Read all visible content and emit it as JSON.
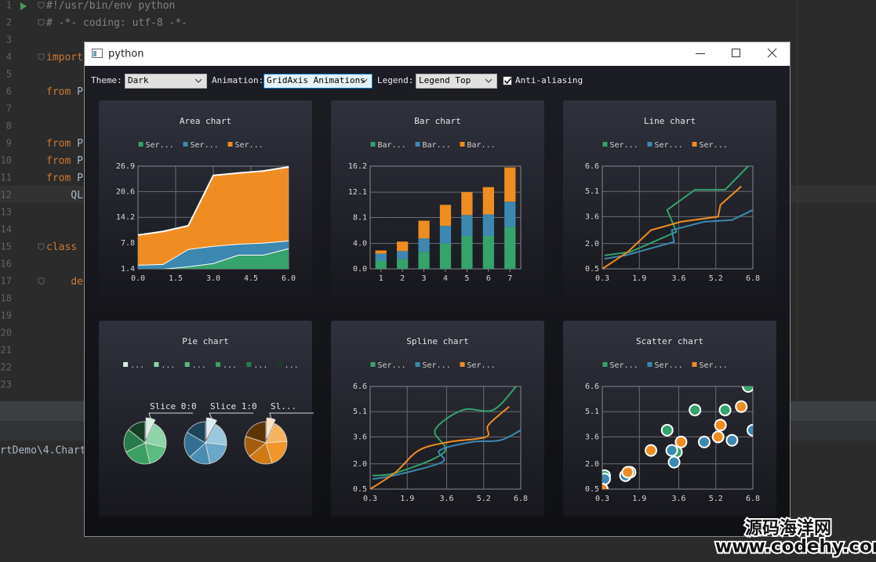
{
  "editor": {
    "line_numbers": [
      1,
      2,
      3,
      4,
      5,
      6,
      7,
      8,
      9,
      10,
      11,
      12,
      13,
      14,
      15,
      16,
      17,
      18,
      19,
      20,
      21,
      22,
      23
    ],
    "code": [
      "#!/usr/bin/env python",
      "# -*- coding: utf-8 -*-",
      null,
      "import",
      null,
      "from P",
      null,
      null,
      "from P",
      "from P",
      "from P",
      "    QL",
      null,
      null,
      "class",
      null,
      "    de",
      null,
      null,
      null,
      null,
      null,
      null
    ],
    "status_path": "rtDemo\\4.Chart"
  },
  "window": {
    "title": "python"
  },
  "toolbar": {
    "theme_label": "Theme:",
    "theme": "Dark",
    "animation_label": "Animation:",
    "animation": "GridAxis Animations",
    "legend_label": "Legend:",
    "legend": "Legend Top",
    "antialiasing_label": "Anti-aliasing",
    "antialiasing": true
  },
  "charts": [
    {
      "type": "area",
      "title": "Area chart",
      "x": [
        0,
        1,
        2,
        3,
        4,
        5,
        6
      ],
      "xlim": [
        0,
        6
      ],
      "xticks": [
        {
          "value": 0,
          "label": "0.0"
        },
        1.5,
        {
          "value": 3,
          "label": "3.0"
        },
        4.5,
        {
          "value": 6,
          "label": "6.0"
        }
      ],
      "ylim": [
        1.4,
        26.9
      ],
      "yticks": [
        1.4,
        7.8,
        14.2,
        20.6,
        26.9
      ],
      "series": [
        {
          "name": "Ser...",
          "color": "#36a26c",
          "values": [
            1.4,
            1.4,
            2.0,
            2.8,
            4.9,
            4.9,
            6.5
          ]
        },
        {
          "name": "Ser...",
          "color": "#3d88b0",
          "values": [
            1.0,
            1.2,
            4.3,
            4.3,
            2.7,
            3.0,
            1.9
          ]
        },
        {
          "name": "Ser...",
          "color": "#ef8d22",
          "values": [
            7.4,
            8.1,
            5.8,
            17.5,
            17.6,
            17.8,
            18.3
          ]
        }
      ]
    },
    {
      "type": "bar",
      "title": "Bar chart",
      "categories": [
        "1",
        "2",
        "3",
        "4",
        "5",
        "6",
        "7"
      ],
      "ylim": [
        0,
        16.2
      ],
      "yticks": [
        {
          "value": 0,
          "label": "0.0"
        },
        {
          "value": 4,
          "label": "4.0"
        },
        8.1,
        12.1,
        16.2
      ],
      "series": [
        {
          "name": "Bar...",
          "color": "#36a26c",
          "values": [
            1.3,
            1.5,
            2.7,
            4.0,
            5.2,
            5.2,
            6.6
          ]
        },
        {
          "name": "Bar...",
          "color": "#3d88b0",
          "values": [
            1.1,
            1.3,
            2.1,
            2.8,
            3.3,
            3.4,
            4.0
          ]
        },
        {
          "name": "Bar...",
          "color": "#ef8d22",
          "values": [
            0.5,
            1.5,
            2.8,
            3.3,
            3.6,
            4.3,
            5.4
          ]
        }
      ]
    },
    {
      "type": "line",
      "title": "Line chart",
      "xlim": [
        0.3,
        6.8
      ],
      "xticks": [
        0.3,
        1.9,
        3.6,
        5.2,
        6.8
      ],
      "ylim": [
        0.5,
        6.6
      ],
      "yticks": [
        0.5,
        {
          "value": 2,
          "label": "2.0"
        },
        3.6,
        5.1,
        6.6
      ],
      "series": [
        {
          "name": "Ser...",
          "color": "#36a26c",
          "x": [
            0.4,
            1.5,
            3.5,
            3.1,
            4.3,
            5.6,
            6.6
          ],
          "values": [
            1.3,
            1.5,
            2.7,
            4.0,
            5.2,
            5.2,
            6.6
          ]
        },
        {
          "name": "Ser...",
          "color": "#3d88b0",
          "x": [
            0.4,
            1.3,
            3.4,
            3.3,
            4.7,
            5.9,
            6.8
          ],
          "values": [
            1.1,
            1.3,
            2.1,
            2.8,
            3.3,
            3.4,
            4.0
          ]
        },
        {
          "name": "Ser...",
          "color": "#ef8d22",
          "x": [
            0.3,
            1.4,
            2.4,
            3.7,
            5.3,
            5.4,
            6.3
          ],
          "values": [
            0.5,
            1.5,
            2.8,
            3.3,
            3.6,
            4.3,
            5.4
          ]
        }
      ]
    },
    {
      "type": "pie",
      "title": "Pie chart",
      "legend": [
        "...",
        "...",
        "...",
        "...",
        "...",
        "..."
      ],
      "pies": [
        {
          "label": "Slice 0:0",
          "colors": [
            "#d6efdf",
            "#8fd3a8",
            "#5cbb80",
            "#3a9f63",
            "#2a7b4b",
            "#173f28"
          ],
          "values": [
            1,
            3,
            2.5,
            3,
            2.5,
            2
          ]
        },
        {
          "label": "Slice 1:0",
          "colors": [
            "#dcecf5",
            "#9cc8df",
            "#6aa7c8",
            "#4a8db3",
            "#336f93",
            "#1d4459"
          ],
          "values": [
            1.2,
            2.8,
            3,
            2.5,
            3,
            2.5
          ]
        },
        {
          "label": "Sl...",
          "colors": [
            "#fde3c3",
            "#f7b460",
            "#f0962a",
            "#d07a16",
            "#a65e0e",
            "#5e3306"
          ],
          "values": [
            1,
            2.6,
            3.2,
            2.8,
            2.4,
            3
          ]
        }
      ]
    },
    {
      "type": "spline",
      "title": "Spline chart",
      "xlim": [
        0.3,
        6.8
      ],
      "xticks": [
        0.3,
        1.9,
        3.6,
        5.2,
        6.8
      ],
      "ylim": [
        0.5,
        6.6
      ],
      "yticks": [
        0.5,
        {
          "value": 2,
          "label": "2.0"
        },
        3.6,
        5.1,
        6.6
      ],
      "series": [
        {
          "name": "Ser...",
          "color": "#36a26c",
          "x": [
            0.4,
            1.5,
            3.5,
            3.1,
            4.3,
            5.6,
            6.6
          ],
          "values": [
            1.3,
            1.5,
            2.7,
            4.0,
            5.2,
            5.2,
            6.6
          ]
        },
        {
          "name": "Ser...",
          "color": "#3d88b0",
          "x": [
            0.4,
            1.3,
            3.4,
            3.3,
            4.7,
            5.9,
            6.8
          ],
          "values": [
            1.1,
            1.3,
            2.1,
            2.8,
            3.3,
            3.4,
            4.0
          ]
        },
        {
          "name": "Ser...",
          "color": "#ef8d22",
          "x": [
            0.3,
            1.4,
            2.4,
            3.7,
            5.3,
            5.4,
            6.3
          ],
          "values": [
            0.5,
            1.5,
            2.8,
            3.3,
            3.6,
            4.3,
            5.4
          ]
        }
      ]
    },
    {
      "type": "scatter",
      "title": "Scatter chart",
      "xlim": [
        0.3,
        6.8
      ],
      "xticks": [
        0.3,
        1.9,
        3.6,
        5.2,
        6.8
      ],
      "ylim": [
        0.5,
        6.6
      ],
      "yticks": [
        0.5,
        {
          "value": 2,
          "label": "2.0"
        },
        3.6,
        5.1,
        6.6
      ],
      "series": [
        {
          "name": "Ser...",
          "color": "#36a26c",
          "x": [
            0.4,
            1.5,
            3.5,
            3.1,
            4.3,
            5.6,
            6.6
          ],
          "values": [
            1.3,
            1.5,
            2.7,
            4.0,
            5.2,
            5.2,
            6.6
          ]
        },
        {
          "name": "Ser...",
          "color": "#3d88b0",
          "x": [
            0.4,
            1.3,
            3.4,
            3.3,
            4.7,
            5.9,
            6.8
          ],
          "values": [
            1.1,
            1.3,
            2.1,
            2.8,
            3.3,
            3.4,
            4.0
          ]
        },
        {
          "name": "Ser...",
          "color": "#ef8d22",
          "x": [
            0.3,
            1.4,
            2.4,
            3.7,
            5.3,
            5.4,
            6.3
          ],
          "values": [
            0.5,
            1.5,
            2.8,
            3.3,
            3.6,
            4.3,
            5.4
          ]
        }
      ]
    }
  ],
  "watermark": {
    "name": "源码海洋网",
    "url": "www.codehy.com"
  }
}
